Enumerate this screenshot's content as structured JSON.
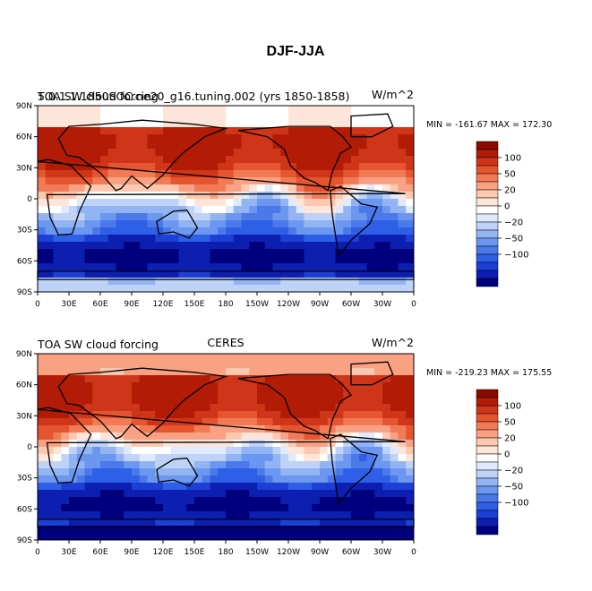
{
  "figure_title": "DJF-JJA",
  "colors": {
    "levels": [
      -100,
      -50,
      -20,
      0,
      20,
      50,
      100
    ],
    "palette": [
      "#00007f",
      "#0c1fb0",
      "#1c3fd6",
      "#2f5fe6",
      "#4b79ea",
      "#6c97f0",
      "#93b4f3",
      "#bfd2f7",
      "#dfeafc",
      "#ffffff",
      "#fde5d9",
      "#fcc8b0",
      "#f9a283",
      "#f27a55",
      "#e55530",
      "#cf3518",
      "#b21c07",
      "#8c0a00"
    ]
  },
  "chart_data": [
    {
      "type": "heatmap",
      "title_left": "5.0.1.1.1850SOC.ne20_g16.tuning.002 (yrs 1850-1858)",
      "title_left_overlay": "TOA SW cloud forcing",
      "title_right": "W/m^2",
      "min_max_text": "MIN = -161.67   MAX = 172.30",
      "stats": {
        "min": -161.67,
        "max": 172.3
      },
      "x_ticks": [
        "0",
        "30E",
        "60E",
        "90E",
        "120E",
        "150E",
        "180",
        "150W",
        "120W",
        "90W",
        "60W",
        "30W",
        "0"
      ],
      "y_ticks": [
        "90N",
        "60N",
        "30N",
        "0",
        "30S",
        "60S",
        "90S"
      ],
      "xlim": [
        0,
        360
      ],
      "ylim": [
        -90,
        90
      ],
      "colorbar_labels": [
        "100",
        "50",
        "20",
        "0",
        "−20",
        "−50",
        "−100"
      ]
    },
    {
      "type": "heatmap",
      "title_left": "TOA SW cloud forcing",
      "title_center": "CERES",
      "title_right": "W/m^2",
      "min_max_text": "MIN = -219.23   MAX = 175.55",
      "stats": {
        "min": -219.23,
        "max": 175.55
      },
      "x_ticks": [
        "0",
        "30E",
        "60E",
        "90E",
        "120E",
        "150E",
        "180",
        "150W",
        "120W",
        "90W",
        "60W",
        "30W",
        "0"
      ],
      "y_ticks": [
        "90N",
        "60N",
        "30N",
        "0",
        "30S",
        "60S",
        "90S"
      ],
      "xlim": [
        0,
        360
      ],
      "ylim": [
        -90,
        90
      ],
      "colorbar_labels": [
        "100",
        "50",
        "20",
        "0",
        "−20",
        "−50",
        "−100"
      ]
    }
  ]
}
